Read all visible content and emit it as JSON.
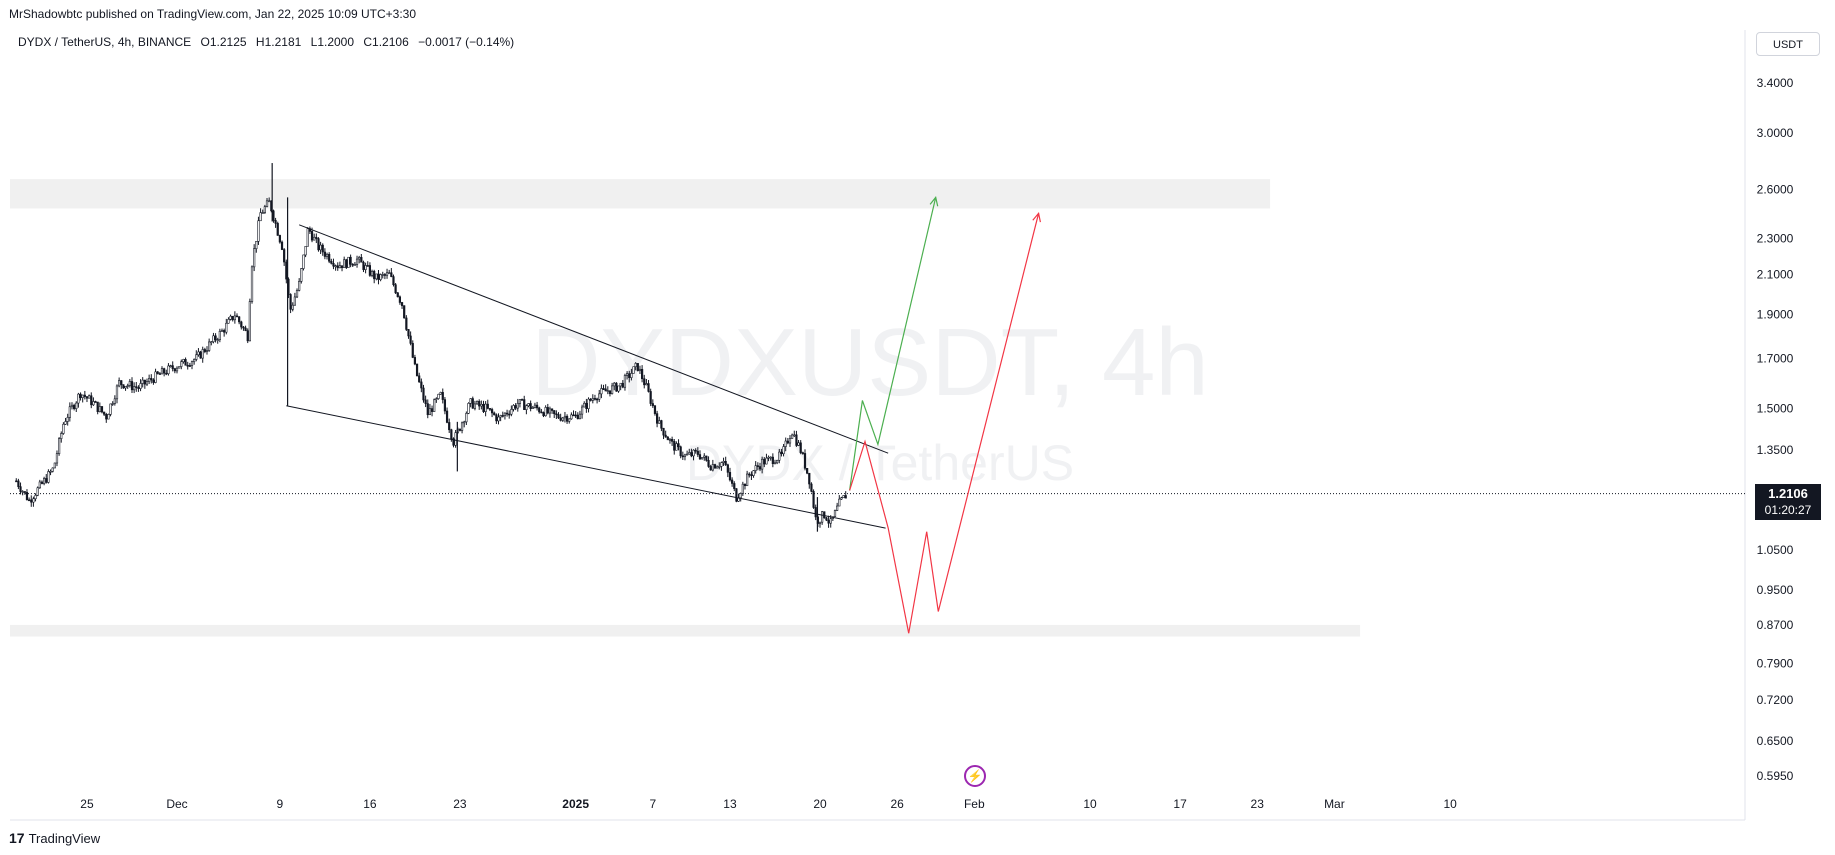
{
  "header": {
    "published": "MrShadowbtc published on TradingView.com, Jan 22, 2025 10:09 UTC+3:30"
  },
  "legend": {
    "symbol": "DYDX / TetherUS, 4h, BINANCE",
    "open": "O1.2125",
    "high": "H1.2181",
    "low": "L1.2000",
    "close": "C1.2106",
    "change": "−0.0017 (−0.14%)"
  },
  "currency_button": "USDT",
  "watermark": {
    "line1": "DYDXUSDT, 4h",
    "line2": "DYDX / TetherUS"
  },
  "price_tag": {
    "price": "1.2106",
    "countdown": "01:20:27"
  },
  "footer": {
    "brand": "TradingView"
  },
  "colors": {
    "up_arrow": "#4caf50",
    "down_path": "#f23645",
    "zone": "#f0f0f0",
    "candle": "#131722"
  },
  "chart_data": {
    "type": "candlestick",
    "symbol": "DYDXUSDT",
    "interval": "4h",
    "y_scale": "log",
    "y_ticks": [
      3.4,
      3.0,
      2.6,
      2.3,
      2.1,
      1.9,
      1.7,
      1.5,
      1.35,
      1.21,
      1.05,
      0.95,
      0.87,
      0.79,
      0.72,
      0.65,
      0.595
    ],
    "y_tick_labels": [
      "3.4000",
      "3.0000",
      "2.6000",
      "2.3000",
      "2.1000",
      "1.9000",
      "1.7000",
      "1.5000",
      "1.3500",
      "",
      "1.0500",
      "0.9500",
      "0.8700",
      "0.7900",
      "0.7200",
      "0.6500",
      "0.5950"
    ],
    "x_ticks": [
      {
        "label": "25",
        "day": -7,
        "bold": false
      },
      {
        "label": "Dec",
        "day": 0,
        "bold": false
      },
      {
        "label": "9",
        "day": 8,
        "bold": false
      },
      {
        "label": "16",
        "day": 15,
        "bold": false
      },
      {
        "label": "23",
        "day": 22,
        "bold": false
      },
      {
        "label": "2025",
        "day": 31,
        "bold": true
      },
      {
        "label": "7",
        "day": 37,
        "bold": false
      },
      {
        "label": "13",
        "day": 43,
        "bold": false
      },
      {
        "label": "20",
        "day": 50,
        "bold": false
      },
      {
        "label": "26",
        "day": 56,
        "bold": false
      },
      {
        "label": "Feb",
        "day": 62,
        "bold": false
      },
      {
        "label": "10",
        "day": 71,
        "bold": false
      },
      {
        "label": "17",
        "day": 78,
        "bold": false
      },
      {
        "label": "23",
        "day": 84,
        "bold": false
      },
      {
        "label": "Mar",
        "day": 90,
        "bold": false
      },
      {
        "label": "10",
        "day": 99,
        "bold": false
      }
    ],
    "price_path": [
      [
        -12.5,
        1.25
      ],
      [
        -11.5,
        1.19
      ],
      [
        -10.5,
        1.24
      ],
      [
        -9.6,
        1.29
      ],
      [
        -8.8,
        1.45
      ],
      [
        -7.5,
        1.56
      ],
      [
        -6.5,
        1.52
      ],
      [
        -5.5,
        1.47
      ],
      [
        -4.5,
        1.6
      ],
      [
        -3.0,
        1.58
      ],
      [
        -1.5,
        1.63
      ],
      [
        0.0,
        1.67
      ],
      [
        1.5,
        1.7
      ],
      [
        2.5,
        1.76
      ],
      [
        3.5,
        1.82
      ],
      [
        4.5,
        1.9
      ],
      [
        5.5,
        1.8
      ],
      [
        5.8,
        2.15
      ],
      [
        6.5,
        2.45
      ],
      [
        7.2,
        2.52
      ],
      [
        7.8,
        2.35
      ],
      [
        8.2,
        2.25
      ],
      [
        8.8,
        1.92
      ],
      [
        9.5,
        2.05
      ],
      [
        10.2,
        2.36
      ],
      [
        11.0,
        2.25
      ],
      [
        12.5,
        2.15
      ],
      [
        14.0,
        2.18
      ],
      [
        15.5,
        2.08
      ],
      [
        16.5,
        2.1
      ],
      [
        17.5,
        1.95
      ],
      [
        18.5,
        1.66
      ],
      [
        19.5,
        1.48
      ],
      [
        20.5,
        1.55
      ],
      [
        21.5,
        1.38
      ],
      [
        22.8,
        1.52
      ],
      [
        24.0,
        1.5
      ],
      [
        25.0,
        1.46
      ],
      [
        26.5,
        1.52
      ],
      [
        28.0,
        1.5
      ],
      [
        29.5,
        1.47
      ],
      [
        31.0,
        1.47
      ],
      [
        32.5,
        1.55
      ],
      [
        34.5,
        1.59
      ],
      [
        35.8,
        1.67
      ],
      [
        36.5,
        1.58
      ],
      [
        37.5,
        1.44
      ],
      [
        38.5,
        1.37
      ],
      [
        39.5,
        1.33
      ],
      [
        40.5,
        1.34
      ],
      [
        41.5,
        1.3
      ],
      [
        42.5,
        1.31
      ],
      [
        43.5,
        1.2
      ],
      [
        44.5,
        1.27
      ],
      [
        45.5,
        1.31
      ],
      [
        47.0,
        1.33
      ],
      [
        47.8,
        1.42
      ],
      [
        48.5,
        1.35
      ],
      [
        49.2,
        1.25
      ],
      [
        49.7,
        1.13
      ],
      [
        50.4,
        1.15
      ],
      [
        50.8,
        1.12
      ],
      [
        51.5,
        1.18
      ],
      [
        52.1,
        1.21
      ]
    ],
    "wicks": [
      {
        "day": 7.4,
        "high": 2.78,
        "low": 2.4
      },
      {
        "day": 8.6,
        "high": 2.55,
        "low": 1.51
      },
      {
        "day": 21.8,
        "high": 1.45,
        "low": 1.28
      },
      {
        "day": 49.8,
        "high": 1.2,
        "low": 1.1
      }
    ],
    "last_price": 1.2106,
    "zones": [
      {
        "from": 2.48,
        "to": 2.67,
        "start_day": -13,
        "end_day": 85
      },
      {
        "from": 0.845,
        "to": 0.87,
        "start_day": -13,
        "end_day": 92
      }
    ],
    "trendlines": [
      {
        "points": [
          [
            9.5,
            2.38
          ],
          [
            55.3,
            1.34
          ]
        ]
      },
      {
        "points": [
          [
            8.5,
            1.51
          ],
          [
            55.1,
            1.11
          ]
        ]
      }
    ],
    "projections": [
      {
        "name": "bullish",
        "color": "#4caf50",
        "points": [
          [
            52.3,
            1.22
          ],
          [
            53.3,
            1.53
          ],
          [
            54.5,
            1.37
          ],
          [
            59.0,
            2.55
          ]
        ]
      },
      {
        "name": "bearish",
        "color": "#f23645",
        "points": [
          [
            52.3,
            1.22
          ],
          [
            53.5,
            1.38
          ],
          [
            55.3,
            1.11
          ],
          [
            56.9,
            0.852
          ],
          [
            58.3,
            1.1
          ],
          [
            59.2,
            0.9
          ],
          [
            67.0,
            2.45
          ]
        ]
      }
    ]
  }
}
